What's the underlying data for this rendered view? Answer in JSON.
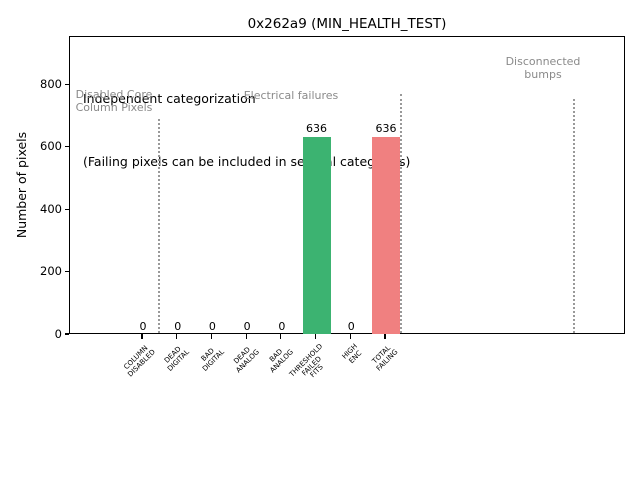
{
  "chart_data": {
    "type": "bar",
    "title": "0x262a9 (MIN_HEALTH_TEST)",
    "ylabel": "Number of pixels",
    "xlabel": "",
    "ylim": [
      0,
      955
    ],
    "yticks": [
      0,
      200,
      400,
      600,
      800
    ],
    "grid": false,
    "legend": null,
    "categories": [
      "COLUMN DISABLED",
      "DEAD DIGITAL",
      "BAD DIGITAL",
      "DEAD ANALOG",
      "BAD ANALOG",
      "THRESHOLD FAILED FITS",
      "HIGH ENC",
      "TOTAL FAILING"
    ],
    "category_lines": [
      [
        "COLUMN",
        "DISABLED"
      ],
      [
        "DEAD",
        "DIGITAL"
      ],
      [
        "BAD",
        "DIGITAL"
      ],
      [
        "DEAD",
        "ANALOG"
      ],
      [
        "BAD",
        "ANALOG"
      ],
      [
        "THRESHOLD",
        "FAILED",
        "FITS"
      ],
      [
        "HIGH",
        "ENC"
      ],
      [
        "TOTAL",
        "FAILING"
      ]
    ],
    "values": [
      0,
      0,
      0,
      0,
      0,
      636,
      0,
      636
    ],
    "bar_value_labels": [
      "0",
      "0",
      "0",
      "0",
      "0",
      "636",
      "0",
      "636"
    ],
    "bar_colors": [
      "#3cb371",
      "#3cb371",
      "#3cb371",
      "#3cb371",
      "#3cb371",
      "#3cb371",
      "#3cb371",
      "#f08080"
    ],
    "notes": {
      "line1": "Independent categorization",
      "line2": "(Failing pixels can be included in several categories)"
    },
    "regions": [
      {
        "label": "Disabled Core\nColumn Pixels"
      },
      {
        "label": "Electrical failures"
      },
      {
        "label": "Disconnected\nbumps"
      }
    ],
    "colors": {
      "bar_green": "#3cb371",
      "bar_red": "#f08080",
      "region_label_gray": "#8a8a8a",
      "separator_gray": "#999999",
      "axis_black": "#000000"
    }
  }
}
